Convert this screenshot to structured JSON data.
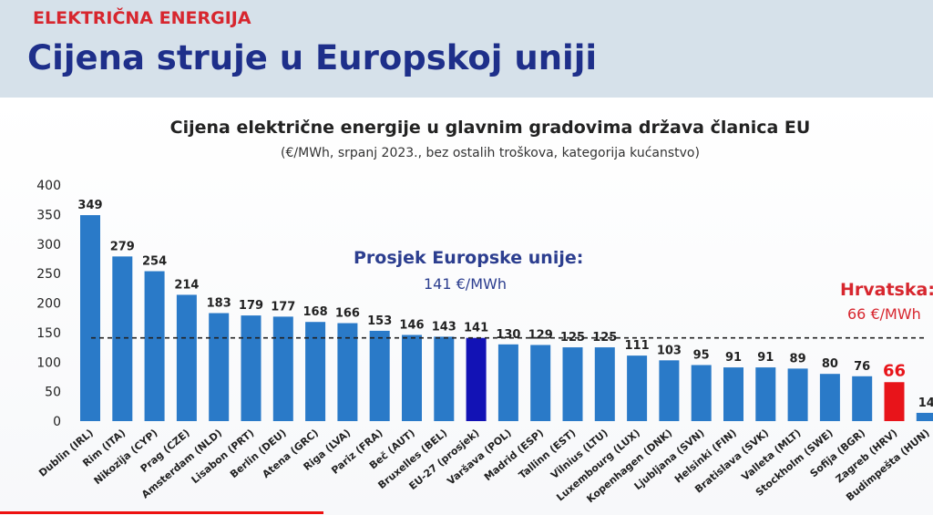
{
  "header": {
    "kicker": "ELEKTRIČNA ENERGIJA",
    "title": "Cijena struje u Europskoj uniji"
  },
  "colors": {
    "bar": "#2a7ac8",
    "bar_average": "#1212b5",
    "bar_highlight": "#e8141a",
    "header_bg": "#d6e1ea",
    "title": "#1e2f8a",
    "accent_red": "#d7262e"
  },
  "annotations": {
    "avg_line1": "Prosjek Europske unije:",
    "avg_line2": "141 €/MWh",
    "hr_line1": "Hrvatska:",
    "hr_line2": "66 €/MWh"
  },
  "chart_data": {
    "type": "bar",
    "title": "Cijena električne energije u glavnim gradovima država članica EU",
    "subtitle": "(€/MWh, srpanj 2023., bez ostalih troškova, kategorija kućanstvo)",
    "categories": [
      "Dublin (IRL)",
      "Rim (ITA)",
      "Nikozija (CYP)",
      "Prag (CZE)",
      "Amsterdam (NLD)",
      "Lisabon (PRT)",
      "Berlin (DEU)",
      "Atena (GRC)",
      "Riga (LVA)",
      "Pariz (FRA)",
      "Beč (AUT)",
      "Bruxelles (BEL)",
      "EU-27 (prosjek)",
      "Varšava (POL)",
      "Madrid (ESP)",
      "Tallinn (EST)",
      "Vilnius (LTU)",
      "Luxembourg (LUX)",
      "Kopenhagen (DNK)",
      "Ljubljana (SVN)",
      "Helsinki (FIN)",
      "Bratislava (SVK)",
      "Valleta (MLT)",
      "Stockholm (SWE)",
      "Sofija (BGR)",
      "Zagreb (HRV)",
      "Budimpešta (HUN)"
    ],
    "values": [
      349,
      279,
      254,
      214,
      183,
      179,
      177,
      168,
      166,
      153,
      146,
      143,
      141,
      130,
      129,
      125,
      125,
      111,
      103,
      95,
      91,
      91,
      89,
      80,
      76,
      66,
      14
    ],
    "average_index": 12,
    "highlight_index": 25,
    "reference_line": 141,
    "ylim": [
      0,
      400
    ],
    "yticks": [
      0,
      50,
      100,
      150,
      200,
      250,
      300,
      350,
      400
    ],
    "grid": false,
    "legend": "none"
  }
}
